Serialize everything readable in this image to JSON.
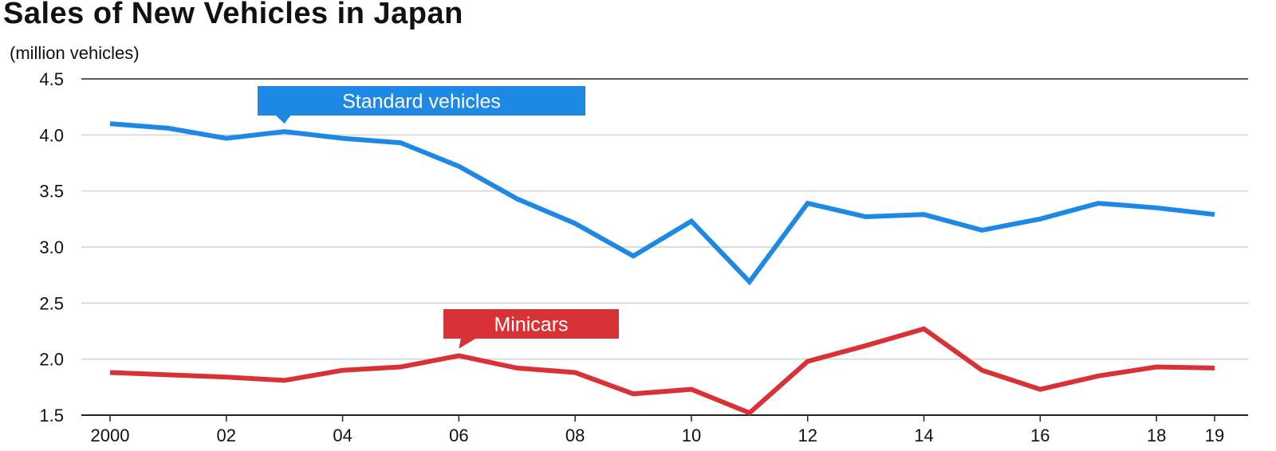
{
  "chart_data": {
    "type": "line",
    "title": "Sales of New Vehicles in Japan",
    "unit_label": "(million vehicles)",
    "ylim": [
      1.5,
      4.5
    ],
    "y_ticks": [
      "4.5",
      "4.0",
      "3.5",
      "3.0",
      "2.5",
      "2.0",
      "1.5"
    ],
    "x": [
      2000,
      2001,
      2002,
      2003,
      2004,
      2005,
      2006,
      2007,
      2008,
      2009,
      2010,
      2011,
      2012,
      2013,
      2014,
      2015,
      2016,
      2017,
      2018,
      2019
    ],
    "x_ticks": [
      "2000",
      "02",
      "04",
      "06",
      "08",
      "10",
      "12",
      "14",
      "16",
      "18",
      "19"
    ],
    "grid": true,
    "series": [
      {
        "name": "Standard vehicles",
        "color": "#1e88e5",
        "values": [
          4.1,
          4.06,
          3.97,
          4.03,
          3.97,
          3.93,
          3.72,
          3.43,
          3.21,
          2.92,
          3.23,
          2.69,
          3.39,
          3.27,
          3.29,
          3.15,
          3.25,
          3.39,
          3.35,
          3.29
        ]
      },
      {
        "name": "Minicars",
        "color": "#d93236",
        "values": [
          1.88,
          1.86,
          1.84,
          1.81,
          1.9,
          1.93,
          2.03,
          1.92,
          1.88,
          1.69,
          1.73,
          1.52,
          1.98,
          2.12,
          2.27,
          1.9,
          1.73,
          1.85,
          1.93,
          1.92
        ]
      }
    ]
  }
}
